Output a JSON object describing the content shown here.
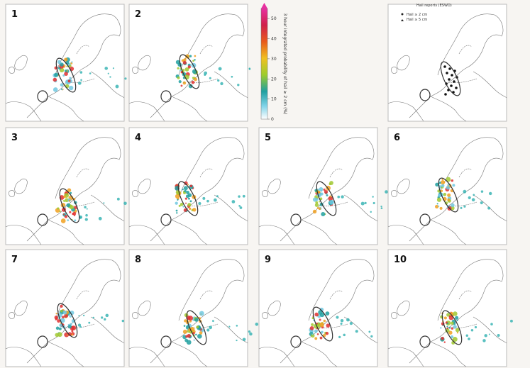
{
  "panels": [
    "1",
    "2",
    "3",
    "4",
    "5",
    "6",
    "7",
    "8",
    "9",
    "10"
  ],
  "colorbar": {
    "label": "3 hour integrated probability of hail ≥ 2 cm (%)",
    "lim": [
      0,
      55
    ],
    "ticks": [
      0,
      10,
      20,
      30,
      40,
      50
    ]
  },
  "legend": {
    "title": "Hail reports (ESWD)",
    "items": [
      "Hail ≥ 2 cm",
      "Hail ≥ 5 cm"
    ]
  }
}
